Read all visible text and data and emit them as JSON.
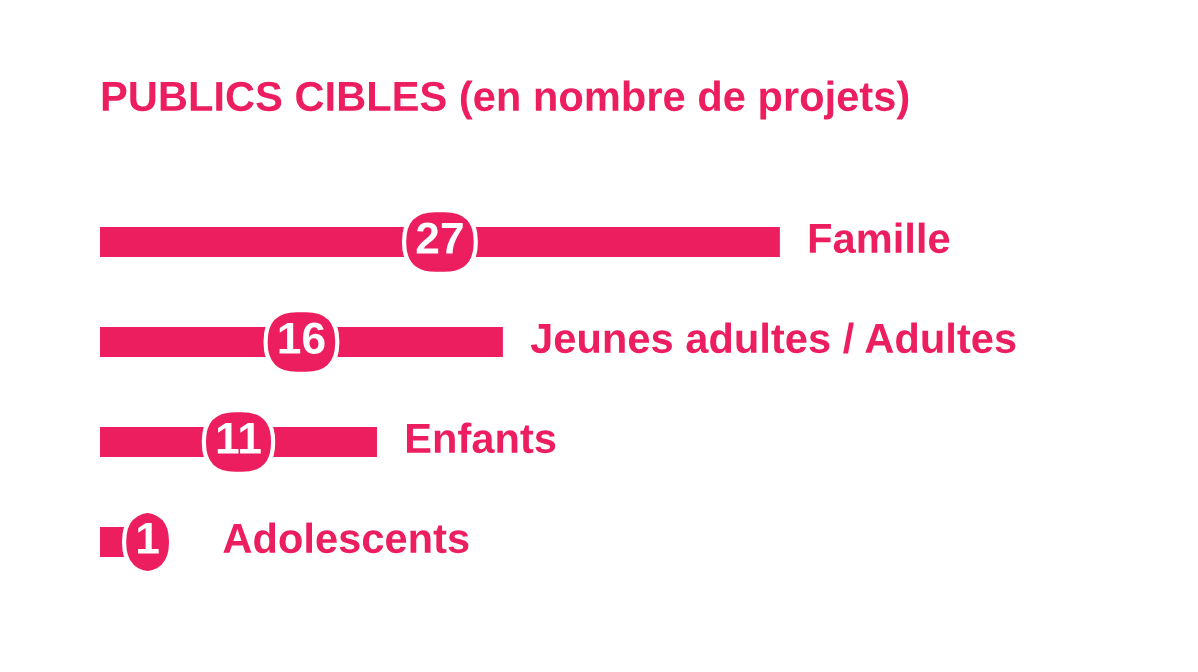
{
  "chart_data": {
    "type": "bar",
    "orientation": "horizontal",
    "title": "PUBLICS CIBLES (en nombre de projets)",
    "categories": [
      "Famille",
      "Jeunes adultes / Adultes",
      "Enfants",
      "Adolescents"
    ],
    "values": [
      27,
      16,
      11,
      1
    ],
    "color": "#ec1e5f",
    "data_labels": true
  }
}
